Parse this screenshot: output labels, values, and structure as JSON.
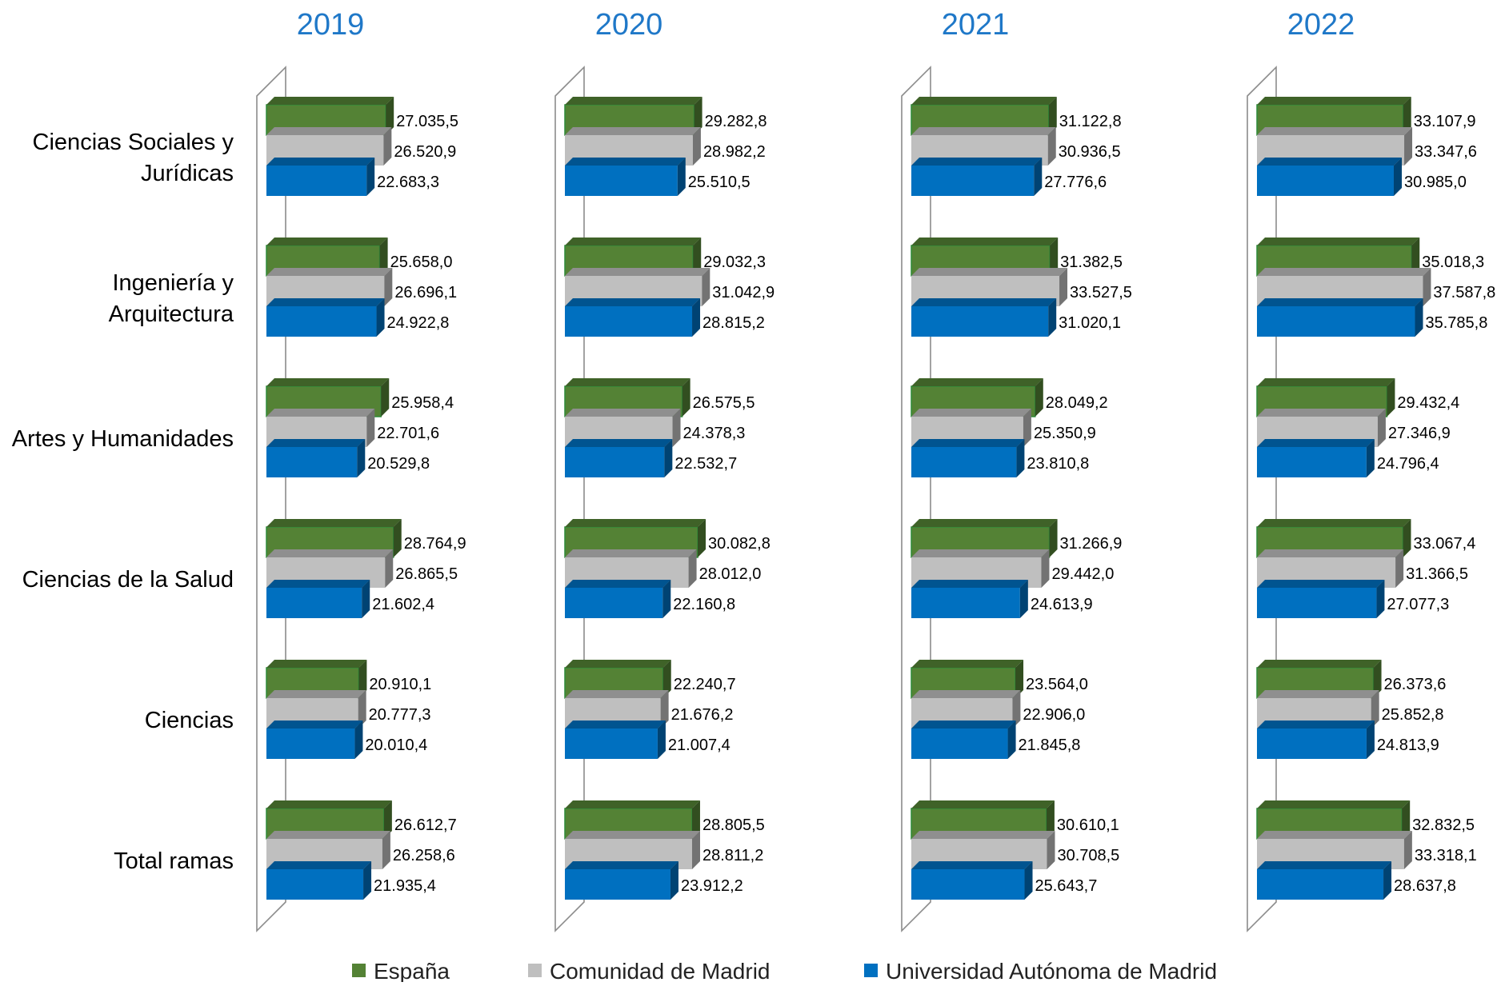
{
  "chart_data": {
    "type": "bar",
    "orientation": "horizontal",
    "panels": [
      "2019",
      "2020",
      "2021",
      "2022"
    ],
    "categories": [
      "Ciencias Sociales y Jurídicas",
      "Ingeniería y Arquitectura",
      "Artes y Humanidades",
      "Ciencias de la Salud",
      "Ciencias",
      "Total ramas"
    ],
    "category_lines": [
      [
        "Ciencias Sociales y",
        "Jurídicas"
      ],
      [
        "Ingeniería y",
        "Arquitectura"
      ],
      [
        "Artes y Humanidades"
      ],
      [
        "Ciencias de la Salud"
      ],
      [
        "Ciencias"
      ],
      [
        "Total ramas"
      ]
    ],
    "series": [
      {
        "name": "España",
        "color": "#548235",
        "values": {
          "2019": [
            27035.5,
            25658.0,
            25958.4,
            28764.9,
            20910.1,
            26612.7
          ],
          "2020": [
            29282.8,
            29032.3,
            26575.5,
            30082.8,
            22240.7,
            28805.5
          ],
          "2021": [
            31122.8,
            31382.5,
            28049.2,
            31266.9,
            23564.0,
            30610.1
          ],
          "2022": [
            33107.9,
            35018.3,
            29432.4,
            33067.4,
            26373.6,
            32832.5
          ]
        },
        "labels": {
          "2019": [
            "27.035,5",
            "25.658,0",
            "25.958,4",
            "28.764,9",
            "20.910,1",
            "26.612,7"
          ],
          "2020": [
            "29.282,8",
            "29.032,3",
            "26.575,5",
            "30.082,8",
            "22.240,7",
            "28.805,5"
          ],
          "2021": [
            "31.122,8",
            "31.382,5",
            "28.049,2",
            "31.266,9",
            "23.564,0",
            "30.610,1"
          ],
          "2022": [
            "33.107,9",
            "35.018,3",
            "29.432,4",
            "33.067,4",
            "26.373,6",
            "32.832,5"
          ]
        }
      },
      {
        "name": "Comunidad de Madrid",
        "color": "#BFBFBF",
        "values": {
          "2019": [
            26520.9,
            26696.1,
            22701.6,
            26865.5,
            20777.3,
            26258.6
          ],
          "2020": [
            28982.2,
            31042.9,
            24378.3,
            28012.0,
            21676.2,
            28811.2
          ],
          "2021": [
            30936.5,
            33527.5,
            25350.9,
            29442.0,
            22906.0,
            30708.5
          ],
          "2022": [
            33347.6,
            37587.8,
            27346.9,
            31366.5,
            25852.8,
            33318.1
          ]
        },
        "labels": {
          "2019": [
            "26.520,9",
            "26.696,1",
            "22.701,6",
            "26.865,5",
            "20.777,3",
            "26.258,6"
          ],
          "2020": [
            "28.982,2",
            "31.042,9",
            "24.378,3",
            "28.012,0",
            "21.676,2",
            "28.811,2"
          ],
          "2021": [
            "30.936,5",
            "33.527,5",
            "25.350,9",
            "29.442,0",
            "22.906,0",
            "30.708,5"
          ],
          "2022": [
            "33.347,6",
            "37.587,8",
            "27.346,9",
            "31.366,5",
            "25.852,8",
            "33.318,1"
          ]
        }
      },
      {
        "name": "Universidad Autónoma de Madrid",
        "color": "#0070C0",
        "values": {
          "2019": [
            22683.3,
            24922.8,
            20529.8,
            21602.4,
            20010.4,
            21935.4
          ],
          "2020": [
            25510.5,
            28815.2,
            22532.7,
            22160.8,
            21007.4,
            23912.2
          ],
          "2021": [
            27776.6,
            31020.1,
            23810.8,
            24613.9,
            21845.8,
            25643.7
          ],
          "2022": [
            30985.0,
            35785.8,
            24796.4,
            27077.3,
            24813.9,
            28637.8
          ]
        },
        "labels": {
          "2019": [
            "22.683,3",
            "24.922,8",
            "20.529,8",
            "21.602,4",
            "20.010,4",
            "21.935,4"
          ],
          "2020": [
            "25.510,5",
            "28.815,2",
            "22.532,7",
            "22.160,8",
            "21.007,4",
            "23.912,2"
          ],
          "2021": [
            "27.776,6",
            "31.020,1",
            "23.810,8",
            "24.613,9",
            "21.845,8",
            "25.643,7"
          ],
          "2022": [
            "30.985,0",
            "35.785,8",
            "24.796,4",
            "27.077,3",
            "24.813,9",
            "28.637,8"
          ]
        }
      }
    ],
    "legend_position": "bottom",
    "grid": false,
    "style": "3d"
  }
}
